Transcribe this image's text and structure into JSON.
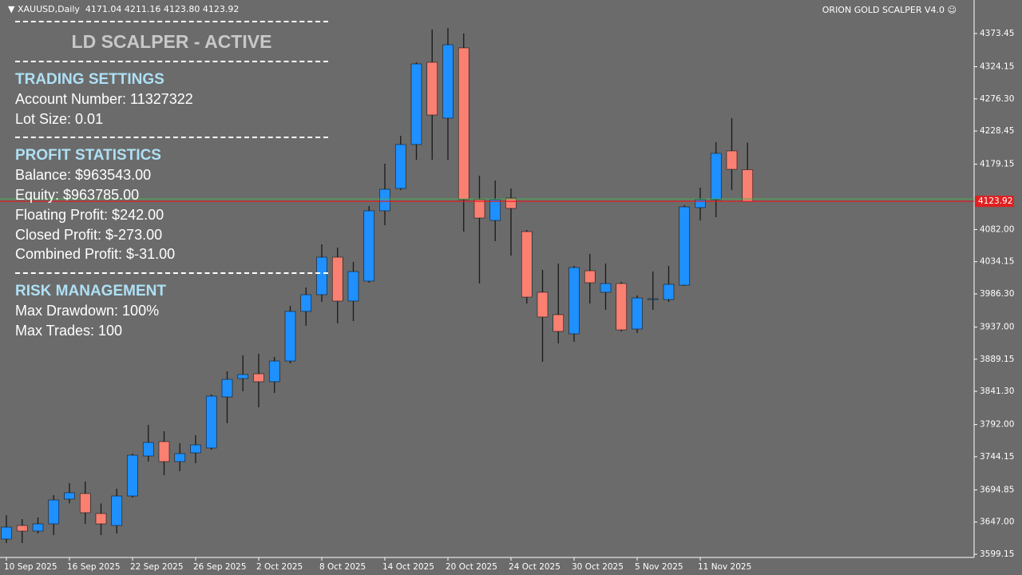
{
  "header": {
    "symbol": "XAUUSD,Daily",
    "ohlc": "4171.04 4211.16 4123.80 4123.92",
    "expert": "ORION GOLD SCALPER V4.0"
  },
  "panel": {
    "title": "LD SCALPER - ACTIVE",
    "sections": [
      {
        "heading": "TRADING SETTINGS",
        "items": [
          "Account Number: 11327322",
          "Lot Size: 0.01"
        ]
      },
      {
        "heading": "PROFIT STATISTICS",
        "items": [
          "Balance: $963543.00",
          "Equity: $963785.00",
          "Floating Profit: $242.00",
          "Closed Profit: $-273.00",
          "Combined Profit: $-31.00"
        ]
      },
      {
        "heading": "RISK MANAGEMENT",
        "items": [
          "Max Drawdown: 100%",
          "Max Trades: 100"
        ]
      }
    ]
  },
  "chart_data": {
    "type": "candlestick",
    "categories": [
      "10 Sep 2025",
      null,
      null,
      null,
      "16 Sep 2025",
      null,
      null,
      null,
      "22 Sep 2025",
      null,
      null,
      null,
      "26 Sep 2025",
      null,
      null,
      null,
      "2 Oct 2025",
      null,
      null,
      null,
      "8 Oct 2025",
      null,
      null,
      null,
      "14 Oct 2025",
      null,
      null,
      null,
      "20 Oct 2025",
      null,
      null,
      null,
      "24 Oct 2025",
      null,
      null,
      null,
      "30 Oct 2025",
      null,
      null,
      null,
      "5 Nov 2025",
      null,
      null,
      null,
      "11 Nov 2025",
      null,
      null,
      null
    ],
    "open": [
      3621.7,
      3641.9,
      3633.6,
      3644.3,
      3681.1,
      3689.4,
      3659.7,
      3641.9,
      3685.8,
      3745.2,
      3766.6,
      3736.9,
      3749.9,
      3757.1,
      3833.1,
      3860.4,
      3867.5,
      3855.7,
      3886.5,
      3960.2,
      3985.1,
      4040.9,
      3975.6,
      4005.3,
      4109.8,
      4143.1,
      4208.4,
      4330.7,
      4247.6,
      4352.1,
      4126.4,
      4095.5,
      4128.8,
      4078.9,
      3988.7,
      3955.4,
      3926.9,
      4020.7,
      3988.7,
      4001.7,
      3934.0,
      3977.9,
      3977.9,
      3999.3,
      4114.6,
      4126.4,
      4198.9,
      4171.04
    ],
    "high": [
      3657.3,
      3651.4,
      3653.8,
      3687.0,
      3704.9,
      3707.2,
      3674.7,
      3696.5,
      3748.8,
      3791.5,
      3782.0,
      3764.2,
      3776.1,
      3836.7,
      3871.1,
      3894.9,
      3897.2,
      3892.5,
      3968.5,
      3995.8,
      4059.9,
      4055.2,
      4033.8,
      4116.9,
      4179.9,
      4221.4,
      4330.7,
      4379.4,
      4381.8,
      4373.5,
      4162.1,
      4154.9,
      4143.0,
      4081.3,
      4021.9,
      4031.4,
      4027.9,
      4045.7,
      4031.4,
      4004.1,
      3983.9,
      4019.5,
      4027.9,
      4118.1,
      4144.2,
      4211.9,
      4247.6,
      4211.16
    ],
    "low": [
      3615.8,
      3615.8,
      3630.0,
      3627.6,
      3674.7,
      3644.3,
      3627.6,
      3630.0,
      3683.5,
      3736.9,
      3716.7,
      3722.6,
      3734.5,
      3754.7,
      3793.9,
      3841.4,
      3817.6,
      3839.0,
      3882.9,
      3938.8,
      3974.4,
      3942.4,
      3945.9,
      4003.0,
      4088.4,
      4140.7,
      4185.8,
      4185.8,
      4185.8,
      4078.9,
      4001.7,
      4064.7,
      4043.3,
      3972.0,
      3885.3,
      3912.7,
      3915.0,
      3972.0,
      3962.5,
      3930.5,
      3928.1,
      3962.5,
      3974.4,
      3998.1,
      4095.5,
      4100.3,
      4140.7,
      4123.8
    ],
    "close": [
      3639.5,
      3633.6,
      3644.3,
      3679.9,
      3690.6,
      3660.9,
      3644.3,
      3685.8,
      3746.4,
      3765.4,
      3736.9,
      3748.8,
      3761.8,
      3834.3,
      3859.2,
      3866.4,
      3855.7,
      3886.5,
      3960.2,
      3985.1,
      4040.9,
      3975.6,
      4019.5,
      4109.8,
      4141.9,
      4208.4,
      4328.3,
      4252.3,
      4356.8,
      4126.4,
      4099.1,
      4126.4,
      4113.4,
      3981.5,
      3951.9,
      3930.5,
      4025.5,
      4002.9,
      4001.7,
      3932.8,
      3980.3,
      3979.1,
      4000.5,
      4115.7,
      4126.4,
      4195.3,
      4171.5,
      4123.92
    ],
    "up_color": "#1e90ff",
    "down_color": "#fa8072",
    "wick_color": "#1a1a1a",
    "ask_line": 4127.4,
    "ask_color": "#4caf50",
    "bid_color": "#e02020",
    "ylim": [
      3594.4,
      4423.3
    ],
    "yticks": [
      3599.15,
      {
        "value": 3647.0,
        "label": "3647.00"
      },
      3694.85,
      3744.15,
      {
        "value": 3792.0,
        "label": "3792.00"
      },
      {
        "value": 3841.3,
        "label": "3841.30"
      },
      3889.15,
      {
        "value": 3937.0,
        "label": "3937.00"
      },
      {
        "value": 3986.3,
        "label": "3986.30"
      },
      4034.15,
      {
        "value": 4082.0,
        "label": "4082.00"
      },
      4179.15,
      4228.45,
      {
        "value": 4276.3,
        "label": "4276.30"
      },
      4324.15,
      4373.45
    ]
  }
}
